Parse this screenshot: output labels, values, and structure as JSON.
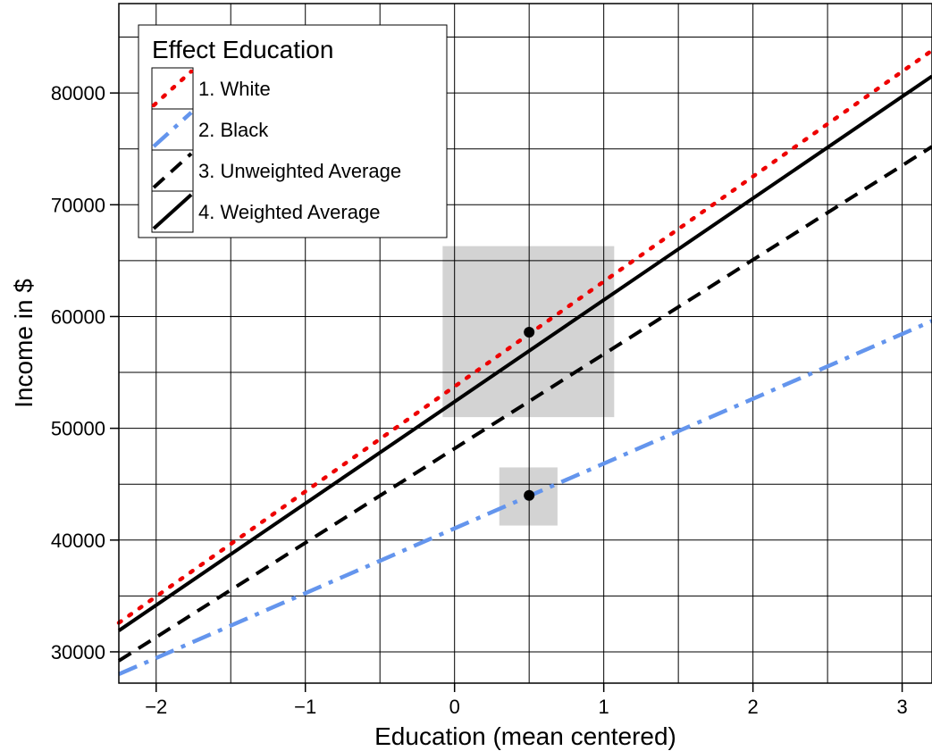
{
  "chart_data": {
    "type": "line",
    "title": "",
    "xlabel": "Education (mean centered)",
    "ylabel": "Income in $",
    "xlim": [
      -2.25,
      3.2
    ],
    "ylim": [
      27200,
      88000
    ],
    "x_ticks": [
      -2,
      -1,
      0,
      1,
      2,
      3
    ],
    "x_tick_labels": [
      "−2",
      "−1",
      "0",
      "1",
      "2",
      "3"
    ],
    "y_ticks": [
      30000,
      40000,
      50000,
      60000,
      70000,
      80000
    ],
    "y_tick_labels": [
      "30000",
      "40000",
      "50000",
      "60000",
      "70000",
      "80000"
    ],
    "grid": true,
    "legend": {
      "title": "Effect Education",
      "position": "top-left"
    },
    "series": [
      {
        "name": "1. White",
        "style": "dotted",
        "color": "#ee0000",
        "x": [
          -2.25,
          3.2
        ],
        "y": [
          32600,
          83800
        ]
      },
      {
        "name": "2. Black",
        "style": "dashdot",
        "color": "#6495ed",
        "x": [
          -2.25,
          3.2
        ],
        "y": [
          28000,
          59600
        ]
      },
      {
        "name": "3. Unweighted Average",
        "style": "dashed",
        "color": "#000000",
        "x": [
          -2.25,
          3.2
        ],
        "y": [
          29200,
          75200
        ]
      },
      {
        "name": "4. Weighted Average",
        "style": "solid",
        "color": "#000000",
        "x": [
          -2.25,
          3.2
        ],
        "y": [
          31900,
          81500
        ]
      }
    ],
    "points": [
      {
        "x": 0.5,
        "y": 58600,
        "x_range": [
          -0.08,
          1.07
        ],
        "y_range": [
          51000,
          66300
        ]
      },
      {
        "x": 0.5,
        "y": 44000,
        "x_range": [
          0.3,
          0.69
        ],
        "y_range": [
          41300,
          46500
        ]
      }
    ]
  }
}
